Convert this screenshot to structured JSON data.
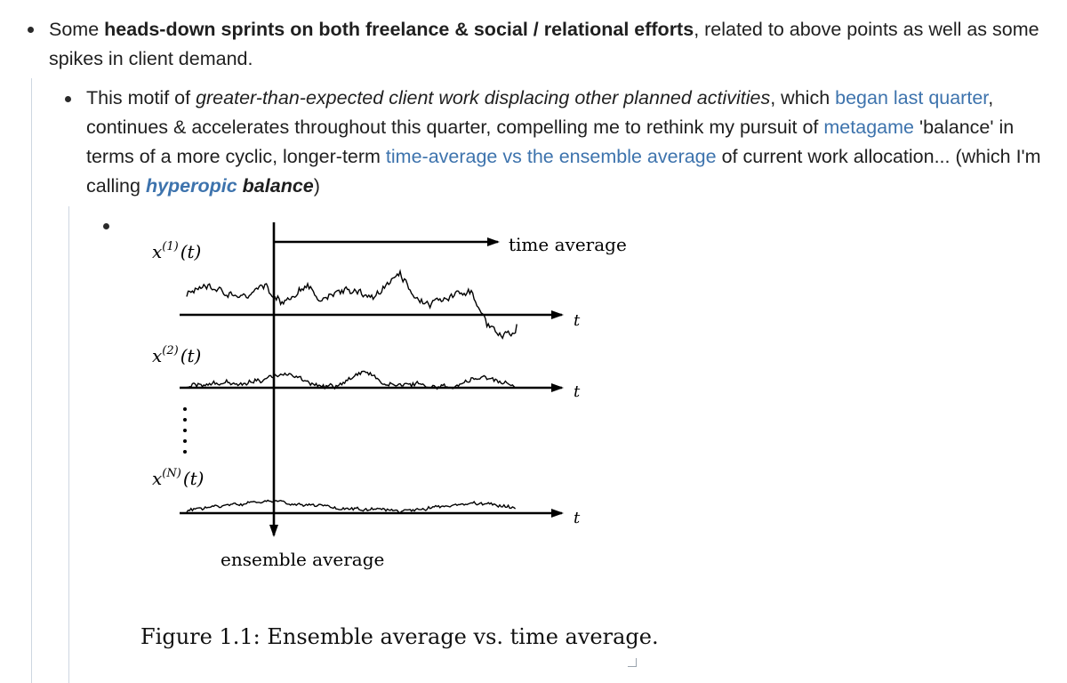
{
  "outline": {
    "item1": {
      "p1": "Some ",
      "b1": "heads-down sprints on both freelance & social / relational efforts",
      "p2": ", related to above points as well as some spikes in client demand."
    },
    "item2": {
      "p1": "This motif of ",
      "i1": "greater-than-expected client work displacing other planned activities",
      "p2": ", which ",
      "l1": "began last quarter",
      "p3": ", continues & accelerates throughout this quarter, compelling me to rethink my pursuit of ",
      "l2": "metagame",
      "p4": " 'balance' in terms of a more cyclic, longer-term ",
      "l3": "time-average vs the ensemble average",
      "p5": " of current work allocation... (which I'm calling ",
      "l4": "hyperopic",
      "b1": "balance",
      "p6": ")"
    }
  },
  "figure": {
    "time_average": "time average",
    "ensemble_average": "ensemble average",
    "t": "t",
    "x1_base": "x",
    "x1_sup": "(1)",
    "x2_base": "x",
    "x2_sup": "(2)",
    "xn_base": "x",
    "xn_sup": "(N)",
    "arg": "(t)",
    "caption": "Figure 1.1: Ensemble average vs. time average."
  },
  "colors": {
    "link": "#3d73ad",
    "text": "#1f1f1f",
    "guide": "#cdd6e1"
  }
}
